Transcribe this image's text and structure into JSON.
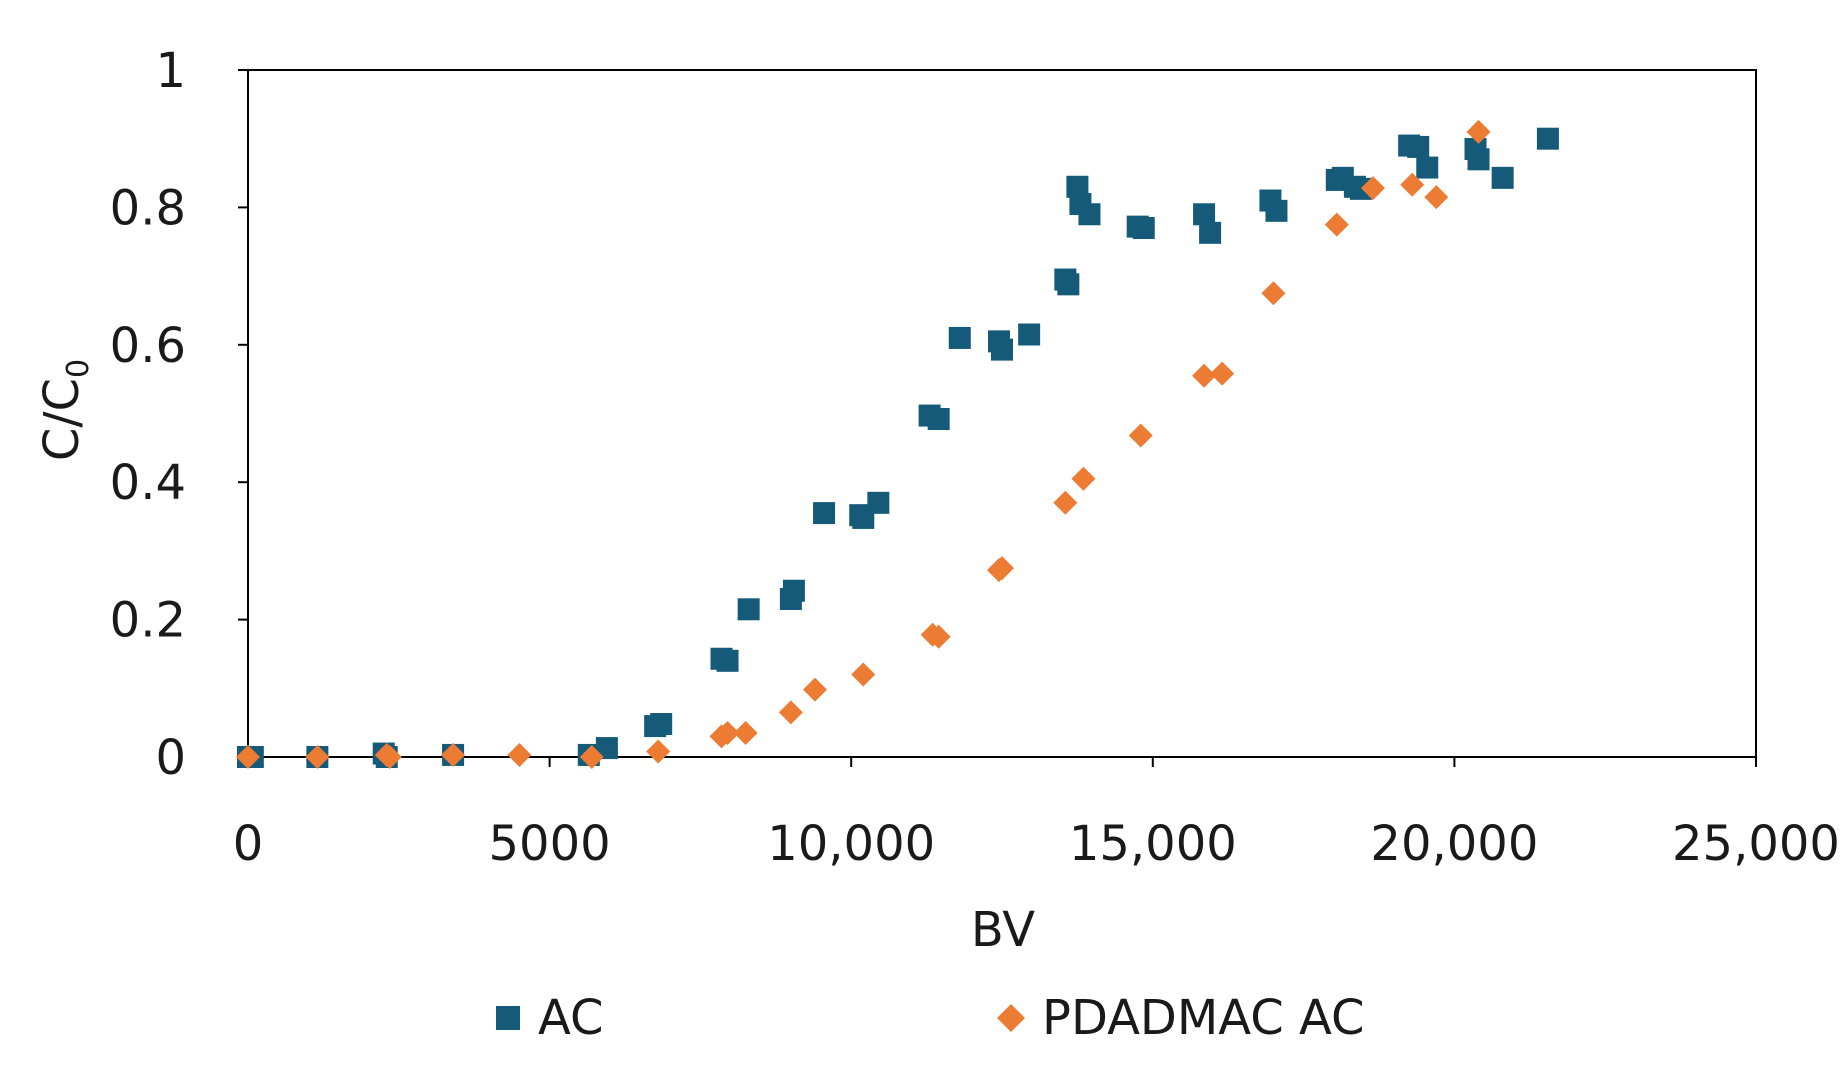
{
  "chart_data": {
    "type": "scatter",
    "title": "",
    "xlabel": "BV",
    "ylabel": "C/C",
    "ylabel_subscript": "0",
    "xlim": [
      0,
      25000
    ],
    "ylim": [
      0,
      1
    ],
    "x_ticks": [
      0,
      5000,
      10000,
      15000,
      20000,
      25000
    ],
    "x_tick_labels": [
      "0",
      "5000",
      "10,000",
      "15,000",
      "20,000",
      "25,000"
    ],
    "y_ticks": [
      0,
      0.2,
      0.4,
      0.6,
      0.8,
      1
    ],
    "y_tick_labels": [
      "0",
      "0.2",
      "0.4",
      "0.6",
      "0.8",
      "1"
    ],
    "grid": false,
    "legend_position": "bottom",
    "series": [
      {
        "name": "AC",
        "marker": "square",
        "color": "#155a78",
        "points": [
          [
            0,
            0.0
          ],
          [
            80,
            0.0
          ],
          [
            1150,
            0.0
          ],
          [
            2250,
            0.005
          ],
          [
            2300,
            0.0
          ],
          [
            3400,
            0.003
          ],
          [
            5650,
            0.003
          ],
          [
            5950,
            0.013
          ],
          [
            6750,
            0.045
          ],
          [
            6850,
            0.048
          ],
          [
            7850,
            0.143
          ],
          [
            7950,
            0.14
          ],
          [
            8300,
            0.215
          ],
          [
            9000,
            0.23
          ],
          [
            9050,
            0.242
          ],
          [
            9550,
            0.355
          ],
          [
            10150,
            0.352
          ],
          [
            10200,
            0.348
          ],
          [
            10450,
            0.37
          ],
          [
            11300,
            0.497
          ],
          [
            11450,
            0.492
          ],
          [
            11800,
            0.61
          ],
          [
            12450,
            0.605
          ],
          [
            12500,
            0.593
          ],
          [
            12950,
            0.615
          ],
          [
            13550,
            0.695
          ],
          [
            13600,
            0.688
          ],
          [
            13750,
            0.83
          ],
          [
            13800,
            0.805
          ],
          [
            13950,
            0.79
          ],
          [
            14750,
            0.772
          ],
          [
            14850,
            0.77
          ],
          [
            15850,
            0.79
          ],
          [
            15950,
            0.763
          ],
          [
            16950,
            0.81
          ],
          [
            17050,
            0.795
          ],
          [
            18050,
            0.84
          ],
          [
            18150,
            0.843
          ],
          [
            18350,
            0.83
          ],
          [
            18450,
            0.827
          ],
          [
            19250,
            0.89
          ],
          [
            19400,
            0.888
          ],
          [
            19550,
            0.858
          ],
          [
            20350,
            0.885
          ],
          [
            20400,
            0.87
          ],
          [
            20800,
            0.843
          ],
          [
            21550,
            0.9
          ]
        ]
      },
      {
        "name": "PDADMAC AC",
        "marker": "diamond",
        "color": "#ec7b34",
        "points": [
          [
            0,
            0.0
          ],
          [
            1150,
            0.0
          ],
          [
            2300,
            0.003
          ],
          [
            2350,
            0.0
          ],
          [
            3400,
            0.003
          ],
          [
            4500,
            0.003
          ],
          [
            5700,
            0.0
          ],
          [
            6800,
            0.008
          ],
          [
            7850,
            0.03
          ],
          [
            7950,
            0.035
          ],
          [
            8250,
            0.035
          ],
          [
            9000,
            0.065
          ],
          [
            9400,
            0.098
          ],
          [
            10200,
            0.12
          ],
          [
            11350,
            0.178
          ],
          [
            11450,
            0.175
          ],
          [
            12450,
            0.272
          ],
          [
            12500,
            0.275
          ],
          [
            13550,
            0.37
          ],
          [
            13850,
            0.405
          ],
          [
            14800,
            0.468
          ],
          [
            15850,
            0.555
          ],
          [
            16150,
            0.558
          ],
          [
            17000,
            0.675
          ],
          [
            18050,
            0.775
          ],
          [
            18650,
            0.828
          ],
          [
            19300,
            0.833
          ],
          [
            19700,
            0.815
          ],
          [
            20400,
            0.91
          ]
        ]
      }
    ]
  }
}
